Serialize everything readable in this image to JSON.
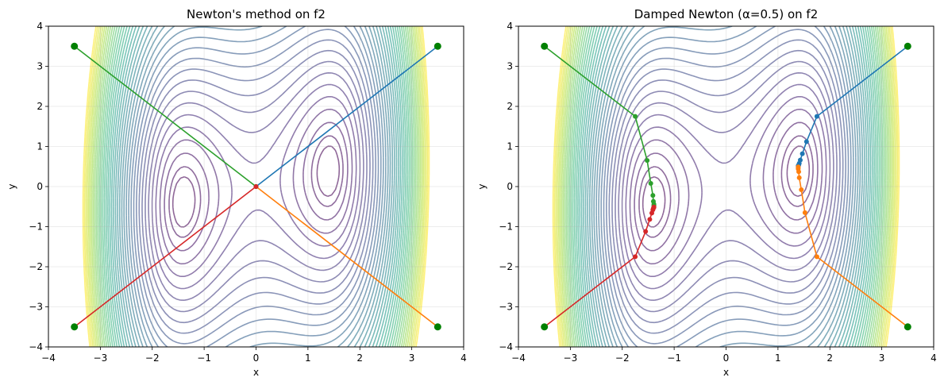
{
  "chart_data": [
    {
      "type": "line",
      "title": "Newton's method on f2",
      "xlabel": "x",
      "ylabel": "y",
      "xlim": [
        -4,
        4
      ],
      "ylim": [
        -4,
        4
      ],
      "xticks": [
        -4,
        -3,
        -2,
        -1,
        0,
        1,
        2,
        3,
        4
      ],
      "yticks": [
        -4,
        -3,
        -2,
        -1,
        0,
        1,
        2,
        3,
        4
      ],
      "grid": true,
      "background": "contour",
      "series": [
        {
          "color": "#1f77b4",
          "points": [
            [
              3.5,
              3.5
            ],
            [
              0,
              0
            ]
          ]
        },
        {
          "color": "#ff7f0e",
          "points": [
            [
              3.5,
              -3.5
            ],
            [
              0,
              0
            ]
          ]
        },
        {
          "color": "#2ca02c",
          "points": [
            [
              -3.5,
              3.5
            ],
            [
              0,
              0
            ]
          ]
        },
        {
          "color": "#d62728",
          "points": [
            [
              -3.5,
              -3.5
            ],
            [
              0,
              0
            ]
          ]
        }
      ],
      "start_marker_color": "#008000"
    },
    {
      "type": "line",
      "title": "Damped Newton (α=0.5) on f2",
      "xlabel": "x",
      "ylabel": "y",
      "xlim": [
        -4,
        4
      ],
      "ylim": [
        -4,
        4
      ],
      "xticks": [
        -4,
        -3,
        -2,
        -1,
        0,
        1,
        2,
        3,
        4
      ],
      "yticks": [
        -4,
        -3,
        -2,
        -1,
        0,
        1,
        2,
        3,
        4
      ],
      "grid": true,
      "background": "contour",
      "series": [
        {
          "color": "#1f77b4",
          "points": [
            [
              3.5,
              3.5
            ],
            [
              1.75,
              1.75
            ],
            [
              1.55,
              1.12
            ],
            [
              1.47,
              0.82
            ],
            [
              1.43,
              0.66
            ],
            [
              1.41,
              0.58
            ],
            [
              1.4,
              0.54
            ],
            [
              1.39,
              0.52
            ],
            [
              1.39,
              0.51
            ]
          ]
        },
        {
          "color": "#ff7f0e",
          "points": [
            [
              3.5,
              -3.5
            ],
            [
              1.75,
              -1.75
            ],
            [
              1.52,
              -0.65
            ],
            [
              1.45,
              -0.08
            ],
            [
              1.41,
              0.22
            ],
            [
              1.4,
              0.37
            ],
            [
              1.39,
              0.44
            ],
            [
              1.39,
              0.47
            ],
            [
              1.39,
              0.49
            ]
          ]
        },
        {
          "color": "#2ca02c",
          "points": [
            [
              -3.5,
              3.5
            ],
            [
              -1.75,
              1.75
            ],
            [
              -1.52,
              0.65
            ],
            [
              -1.45,
              0.08
            ],
            [
              -1.41,
              -0.22
            ],
            [
              -1.4,
              -0.37
            ],
            [
              -1.39,
              -0.44
            ],
            [
              -1.39,
              -0.47
            ],
            [
              -1.39,
              -0.49
            ]
          ]
        },
        {
          "color": "#d62728",
          "points": [
            [
              -3.5,
              -3.5
            ],
            [
              -1.75,
              -1.75
            ],
            [
              -1.55,
              -1.12
            ],
            [
              -1.47,
              -0.82
            ],
            [
              -1.43,
              -0.66
            ],
            [
              -1.41,
              -0.58
            ],
            [
              -1.4,
              -0.54
            ],
            [
              -1.39,
              -0.52
            ],
            [
              -1.39,
              -0.51
            ]
          ]
        }
      ],
      "start_marker_color": "#008000"
    }
  ]
}
